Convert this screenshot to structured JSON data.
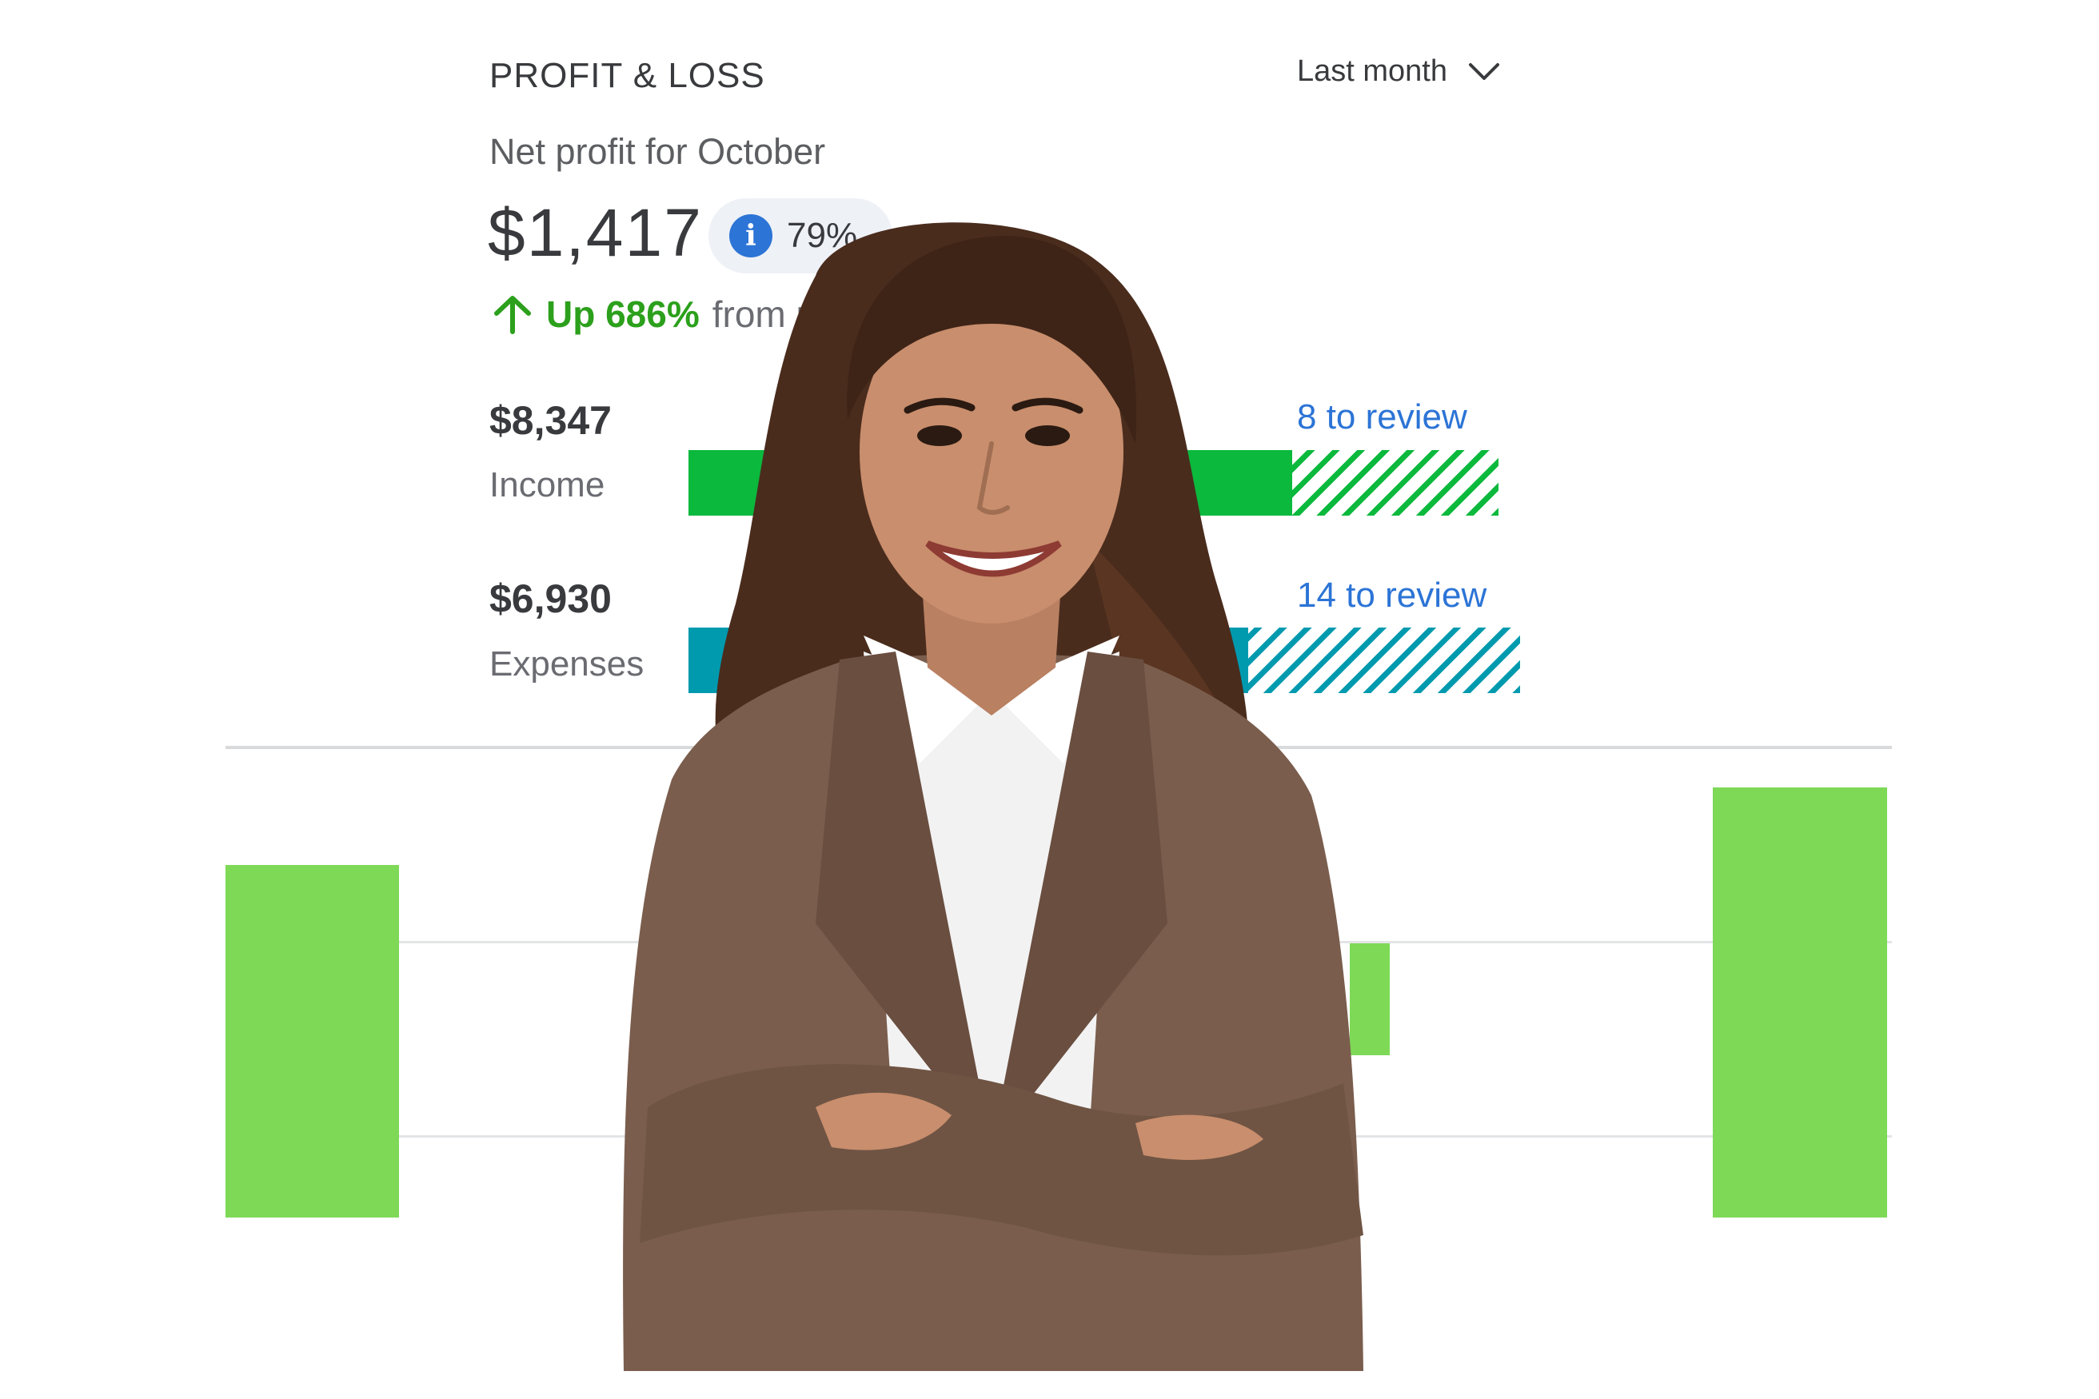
{
  "widget": {
    "title": "PROFIT & LOSS",
    "period_label": "Last month",
    "subtitle": "Net profit for October",
    "net_profit": "$1,417",
    "badge_percent": "79%",
    "change_up": "Up 686%",
    "change_from": "from p"
  },
  "income": {
    "amount": "$8,347",
    "label": "Income",
    "review": "8 to review",
    "color": "#0bb93d"
  },
  "expenses": {
    "amount": "$6,930",
    "label": "Expenses",
    "review": "14 to review",
    "color": "#009aaf"
  },
  "icons": {
    "period": "chevron-down-icon",
    "badge": "info-icon",
    "change": "arrow-up-icon"
  },
  "chart_colors": {
    "bars": "#7ed957"
  }
}
